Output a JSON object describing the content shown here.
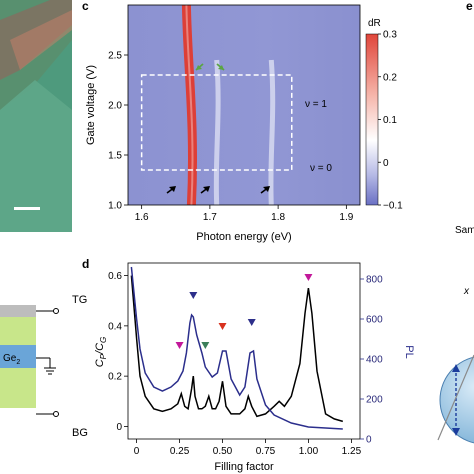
{
  "panels": {
    "c": {
      "label": "c",
      "xlabel": "Photon energy (eV)",
      "ylabel": "Gate voltage (V)",
      "xticks": [
        "1.6",
        "1.7",
        "1.8",
        "1.9"
      ],
      "yticks": [
        "1.0",
        "1.5",
        "2.0",
        "2.5"
      ],
      "colorbar": {
        "title": "dR",
        "ticks": [
          "0.3",
          "0.2",
          "0.1",
          "0",
          "−0.1"
        ]
      },
      "annotations": {
        "nu1": "ν = 1",
        "nu0": "ν = 0"
      }
    },
    "d": {
      "label": "d",
      "xlabel": "Filling factor",
      "ylabel_left": "C_P/C_G",
      "ylabel_left_main": "C",
      "ylabel_left_sub1": "P",
      "ylabel_left_slash": "/C",
      "ylabel_left_sub2": "G",
      "ylabel_right": "PL",
      "xticks": [
        "0",
        "0.25",
        "0.50",
        "0.75",
        "1.00",
        "1.25"
      ],
      "yticks_left": [
        "0",
        "0.2",
        "0.4",
        "0.6"
      ],
      "yticks_right": [
        "0",
        "200",
        "400",
        "600",
        "800"
      ]
    },
    "e": {
      "label": "e",
      "partial_text": "Sam",
      "x_text": "x"
    },
    "left": {
      "tg": "TG",
      "bg": "BG",
      "layer_text": "Ge",
      "layer_sub": "2"
    }
  },
  "colors": {
    "map_bg": "#8f95d2",
    "peak_red": "#e23a2e",
    "curve_black": "#000000",
    "curve_blue": "#2b2e8c",
    "marker_magenta": "#c2189a",
    "marker_navy": "#2d2f8a",
    "marker_green": "#3b7f5a",
    "marker_red": "#d8321f",
    "arrow_green": "#5aa542"
  },
  "chart_data": [
    {
      "type": "heatmap",
      "title": "",
      "xlabel": "Photon energy (eV)",
      "ylabel": "Gate voltage (V)",
      "xlim": [
        1.58,
        1.92
      ],
      "ylim": [
        1.0,
        3.0
      ],
      "colorbar": {
        "label": "dR",
        "range": [
          -0.1,
          0.3
        ]
      },
      "features": [
        {
          "description": "strong resonance",
          "energy": 1.67
        },
        {
          "description": "weak resonance",
          "energy": 1.71
        },
        {
          "description": "weak resonance",
          "energy": 1.79
        }
      ],
      "marked_region": {
        "gate_range": [
          1.35,
          2.3
        ],
        "energy_range": [
          1.6,
          1.82
        ]
      },
      "annotations": [
        "ν = 1",
        "ν = 0"
      ]
    },
    {
      "type": "line",
      "title": "",
      "xlabel": "Filling factor",
      "ylabel": "C_P/C_G",
      "y2label": "PL",
      "xlim": [
        -0.05,
        1.3
      ],
      "ylim": [
        -0.05,
        0.65
      ],
      "y2lim": [
        0,
        880
      ],
      "series": [
        {
          "axis": "left",
          "x": [
            -0.03,
            0.0,
            0.02,
            0.05,
            0.1,
            0.15,
            0.2,
            0.24,
            0.26,
            0.28,
            0.3,
            0.32,
            0.33,
            0.34,
            0.36,
            0.38,
            0.4,
            0.42,
            0.44,
            0.46,
            0.48,
            0.5,
            0.52,
            0.55,
            0.6,
            0.63,
            0.65,
            0.67,
            0.7,
            0.75,
            0.8,
            0.83,
            0.86,
            0.9,
            0.95,
            0.98,
            1.0,
            1.02,
            1.05,
            1.1,
            1.15,
            1.2
          ],
          "values": [
            0.6,
            0.35,
            0.2,
            0.12,
            0.07,
            0.06,
            0.07,
            0.09,
            0.13,
            0.08,
            0.07,
            0.15,
            0.2,
            0.12,
            0.07,
            0.07,
            0.08,
            0.12,
            0.07,
            0.07,
            0.1,
            0.18,
            0.08,
            0.05,
            0.05,
            0.07,
            0.12,
            0.08,
            0.04,
            0.05,
            0.08,
            0.1,
            0.08,
            0.12,
            0.25,
            0.45,
            0.55,
            0.45,
            0.22,
            0.05,
            0.03,
            0.02
          ]
        },
        {
          "axis": "right",
          "x": [
            -0.03,
            0.0,
            0.02,
            0.05,
            0.1,
            0.15,
            0.2,
            0.24,
            0.27,
            0.29,
            0.31,
            0.32,
            0.33,
            0.35,
            0.38,
            0.4,
            0.44,
            0.47,
            0.5,
            0.52,
            0.55,
            0.6,
            0.63,
            0.66,
            0.68,
            0.7,
            0.75,
            0.8,
            0.9,
            1.0,
            1.1,
            1.2
          ],
          "values": [
            860,
            600,
            450,
            330,
            260,
            240,
            260,
            290,
            340,
            430,
            580,
            620,
            610,
            520,
            430,
            360,
            310,
            330,
            440,
            440,
            300,
            220,
            260,
            430,
            440,
            300,
            170,
            120,
            80,
            60,
            55,
            50
          ]
        }
      ],
      "markers": [
        {
          "x": 0.25,
          "color": "magenta"
        },
        {
          "x": 0.33,
          "color": "navy"
        },
        {
          "x": 0.4,
          "color": "green"
        },
        {
          "x": 0.5,
          "color": "red"
        },
        {
          "x": 0.67,
          "color": "navy"
        },
        {
          "x": 1.0,
          "color": "magenta"
        }
      ]
    }
  ]
}
